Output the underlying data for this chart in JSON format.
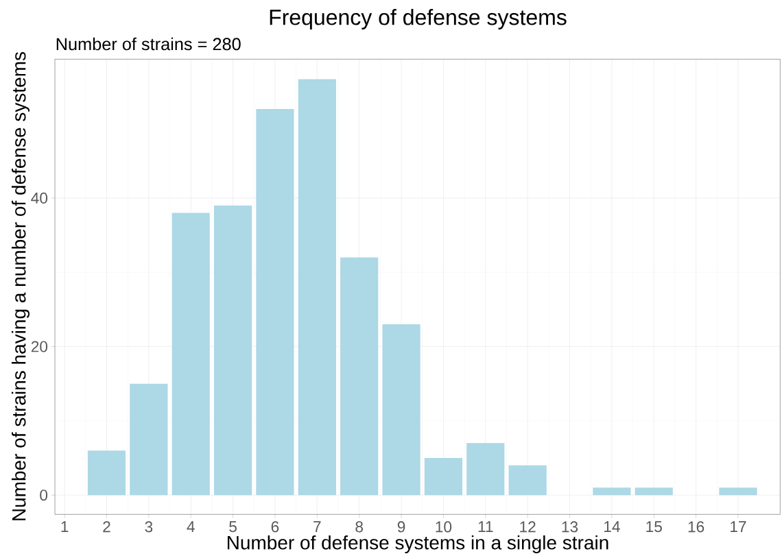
{
  "chart_data": {
    "type": "bar",
    "title": "Frequency of defense systems",
    "subtitle": "Number of strains = 280",
    "xlabel": "Number of defense systems in a single strain",
    "ylabel": "Number of strains having a number of defense systems",
    "x": [
      2,
      3,
      4,
      5,
      6,
      7,
      8,
      9,
      10,
      11,
      12,
      13,
      14,
      15,
      16,
      17
    ],
    "values": [
      6,
      15,
      38,
      39,
      52,
      56,
      32,
      23,
      5,
      7,
      4,
      0,
      1,
      1,
      0,
      1
    ],
    "color": "#add8e6",
    "xlim": [
      0.77,
      18.0
    ],
    "ylim": [
      -2.6,
      58.7
    ],
    "xticks": [
      1,
      2,
      3,
      4,
      5,
      6,
      7,
      8,
      9,
      10,
      11,
      12,
      13,
      14,
      15,
      16,
      17
    ],
    "yticks": [
      0,
      20,
      40
    ],
    "grid": true
  }
}
